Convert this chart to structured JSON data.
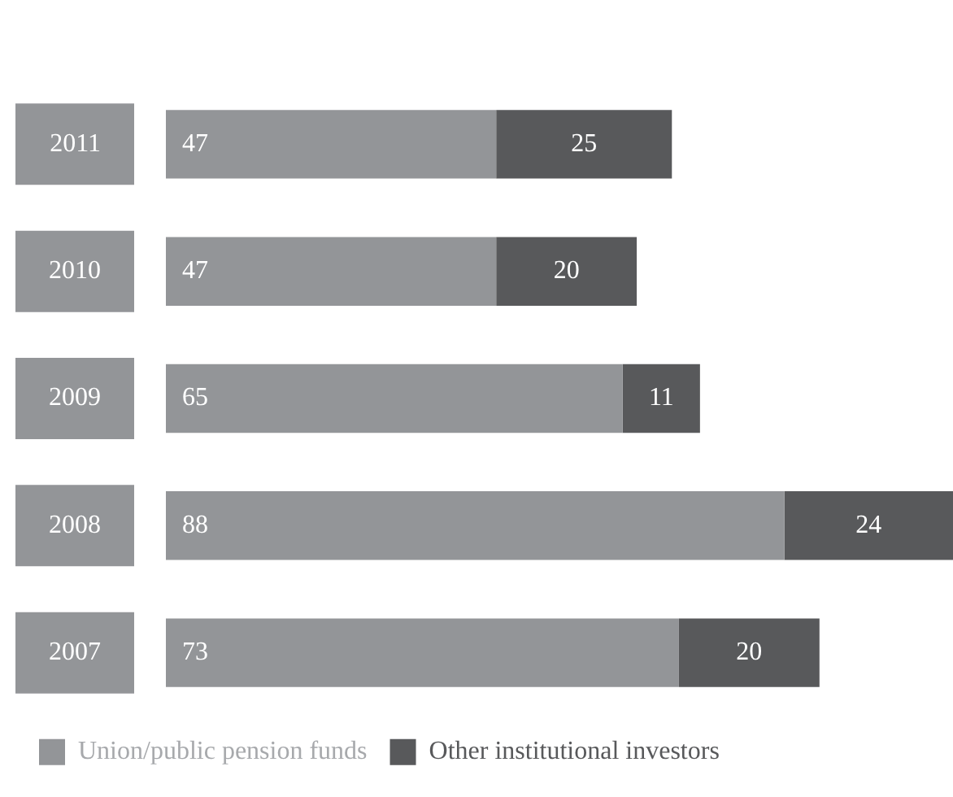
{
  "chart_data": {
    "type": "bar",
    "orientation": "horizontal",
    "stacked": true,
    "categories": [
      "2011",
      "2010",
      "2009",
      "2008",
      "2007"
    ],
    "series": [
      {
        "name": "Union/public pension funds",
        "color": "#939598",
        "values": [
          47,
          47,
          65,
          88,
          73
        ]
      },
      {
        "name": "Other institutional investors",
        "color": "#58595b",
        "values": [
          25,
          20,
          11,
          24,
          20
        ]
      }
    ],
    "data_labels": true,
    "legend": "bottom left"
  }
}
